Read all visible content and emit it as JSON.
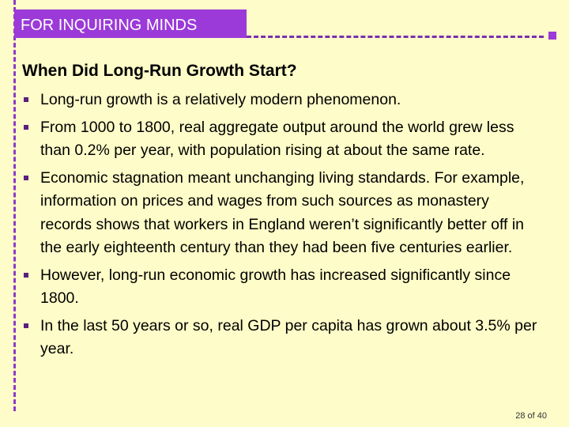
{
  "header": {
    "label": "FOR INQUIRING MINDS"
  },
  "title": "When Did Long-Run Growth Start?",
  "bullets": [
    "Long-run growth is a relatively modern phenomenon.",
    "From 1000 to 1800, real aggregate output around the world grew less than 0.2% per year, with population rising at about the same rate.",
    "Economic stagnation meant unchanging living standards. For example, information on prices and wages from such sources as monastery records shows that workers in England weren’t significantly better off in the early eighteenth century than they had been five centuries earlier.",
    "However, long-run economic growth has increased significantly since 1800.",
    "In the last 50 years or so, real GDP per capita has grown about 3.5% per year."
  ],
  "page_number": "28 of 40"
}
